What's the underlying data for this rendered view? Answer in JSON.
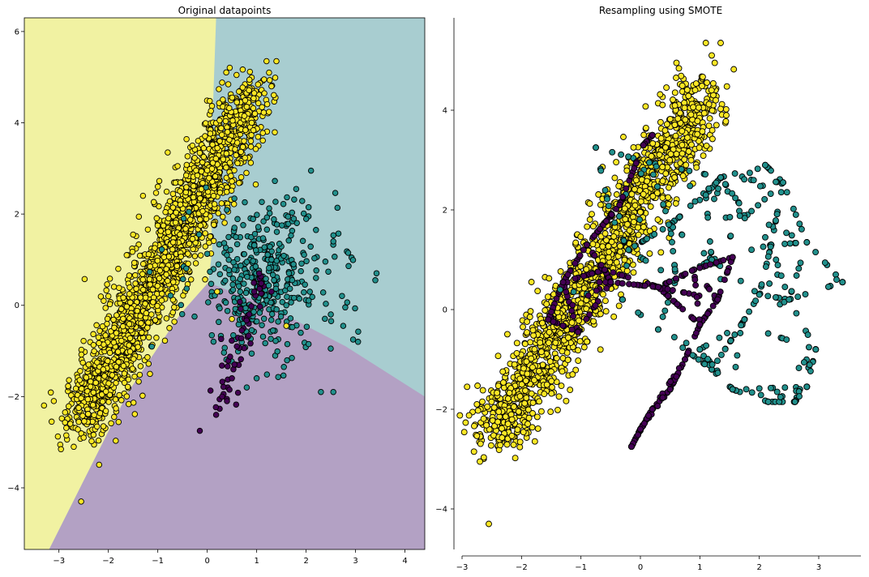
{
  "colors": {
    "class_0": "#440154",
    "class_1": "#21908c",
    "class_2": "#fde725",
    "region_0": "#b3a1c4",
    "region_1": "#a8cdd0",
    "region_2": "#f1f2a2",
    "marker_edge": "#000000"
  },
  "chart_data": [
    {
      "type": "scatter",
      "title": "Original datapoints",
      "xlabel": "",
      "ylabel": "",
      "xlim": [
        -3.7,
        4.4
      ],
      "ylim": [
        -5.35,
        6.3
      ],
      "xticks": [
        -3,
        -2,
        -1,
        0,
        1,
        2,
        3,
        4
      ],
      "yticks": [
        -4,
        -2,
        0,
        2,
        4,
        6
      ],
      "grid": false,
      "background": "decision regions",
      "decision_regions": {
        "class_2_boundary": [
          [
            0.18,
            6.3
          ],
          [
            0.12,
            4.5
          ],
          [
            0.05,
            3.2
          ],
          [
            0.1,
            1.2
          ],
          [
            0.02,
            0.5
          ],
          [
            -0.55,
            -0.2
          ],
          [
            -1.6,
            -1.9
          ],
          [
            -3.2,
            -5.35
          ]
        ],
        "class_0_1_boundary": [
          [
            0.02,
            0.5
          ],
          [
            1.2,
            0.0
          ],
          [
            2.8,
            -0.9
          ],
          [
            4.4,
            -2.0
          ]
        ]
      },
      "series": [
        {
          "class": "2",
          "count_estimate": 2000,
          "distribution": "dense elongated cloud from about (-2.9, -3.0) to (1.4, 5.3)",
          "points": [
            [
              1.4,
              5.35
            ],
            [
              1.2,
              5.35
            ],
            [
              1.25,
              5.1
            ],
            [
              1.15,
              4.95
            ],
            [
              1.3,
              4.8
            ],
            [
              0.95,
              4.65
            ],
            [
              0.8,
              4.35
            ],
            [
              0.6,
              4.45
            ],
            [
              0.75,
              4.15
            ],
            [
              0.9,
              4.0
            ],
            [
              -0.3,
              3.5
            ],
            [
              -0.8,
              3.35
            ],
            [
              -0.6,
              3.05
            ],
            [
              -1.0,
              2.6
            ],
            [
              -1.3,
              2.4
            ],
            [
              -1.5,
              1.55
            ],
            [
              -1.8,
              0.8
            ],
            [
              -2.0,
              0.2
            ],
            [
              -2.2,
              -0.7
            ],
            [
              -2.4,
              -1.3
            ],
            [
              -2.6,
              -2.25
            ],
            [
              -2.85,
              -2.85
            ],
            [
              -2.7,
              -3.1
            ],
            [
              -2.5,
              -2.9
            ],
            [
              -2.1,
              -2.65
            ],
            [
              -2.55,
              -4.3
            ],
            [
              0.2,
              0.3
            ],
            [
              0.5,
              -0.3
            ],
            [
              1.6,
              -0.45
            ]
          ]
        },
        {
          "class": "1",
          "count_estimate": 400,
          "distribution": "sparse cloud centered near (1.2, 0.6)",
          "points": [
            [
              2.1,
              2.95
            ],
            [
              1.8,
              2.55
            ],
            [
              2.05,
              2.15
            ],
            [
              1.75,
              1.9
            ],
            [
              2.2,
              1.65
            ],
            [
              2.55,
              1.4
            ],
            [
              2.85,
              1.15
            ],
            [
              3.4,
              0.55
            ],
            [
              2.2,
              0.6
            ],
            [
              2.5,
              -0.2
            ],
            [
              2.75,
              -0.45
            ],
            [
              2.95,
              -0.75
            ],
            [
              3.05,
              -0.8
            ],
            [
              2.05,
              -0.85
            ],
            [
              1.55,
              -1.35
            ],
            [
              1.0,
              -1.6
            ],
            [
              0.8,
              -1.8
            ],
            [
              2.3,
              -1.9
            ],
            [
              2.55,
              -1.9
            ],
            [
              0.55,
              1.7
            ],
            [
              0.4,
              1.1
            ],
            [
              1.3,
              1.0
            ],
            [
              0.9,
              0.3
            ],
            [
              1.6,
              0.0
            ]
          ]
        },
        {
          "class": "0",
          "count_estimate": 60,
          "distribution": "small cluster near (0.7, -1.2)",
          "points": [
            [
              1.05,
              0.7
            ],
            [
              0.95,
              0.3
            ],
            [
              0.85,
              -0.2
            ],
            [
              0.7,
              -0.55
            ],
            [
              0.6,
              -0.9
            ],
            [
              0.55,
              -1.3
            ],
            [
              0.5,
              -1.6
            ],
            [
              0.45,
              -1.85
            ],
            [
              0.3,
              -2.0
            ],
            [
              0.4,
              -2.1
            ],
            [
              0.18,
              -2.4
            ],
            [
              -0.15,
              -2.75
            ],
            [
              1.3,
              0.3
            ]
          ]
        }
      ]
    },
    {
      "type": "scatter",
      "title": "Resampling using SMOTE",
      "xlabel": "",
      "ylabel": "",
      "xlim": [
        -3.0,
        3.5
      ],
      "ylim": [
        -4.9,
        5.6
      ],
      "xticks": [
        -3,
        -2,
        -1,
        0,
        1,
        2,
        3
      ],
      "yticks": [
        -4,
        -2,
        0,
        2,
        4
      ],
      "grid": false,
      "background": "none",
      "series": [
        {
          "class": "2",
          "count_estimate": 2000,
          "distribution": "same yellow cloud as the original data",
          "points": [
            [
              1.1,
              5.35
            ],
            [
              1.35,
              5.35
            ],
            [
              1.2,
              5.1
            ],
            [
              1.25,
              4.95
            ],
            [
              0.6,
              4.65
            ],
            [
              -2.55,
              -4.3
            ],
            [
              -2.7,
              -3.05
            ],
            [
              -2.8,
              -2.85
            ]
          ]
        },
        {
          "class": "1",
          "count_estimate": 2000,
          "distribution": "synthetic points along segments between original minority samples, spanning x -1.4..3.4, y -2.0..3.0",
          "points": [
            [
              -0.75,
              3.25
            ],
            [
              0.15,
              2.95
            ],
            [
              1.35,
              2.65
            ],
            [
              2.1,
              2.9
            ],
            [
              2.4,
              2.55
            ],
            [
              3.4,
              0.55
            ],
            [
              3.3,
              0.6
            ],
            [
              2.95,
              -0.8
            ],
            [
              2.8,
              -1.55
            ],
            [
              2.15,
              -1.85
            ],
            [
              2.6,
              -1.85
            ],
            [
              1.55,
              -1.6
            ],
            [
              -1.35,
              0.4
            ]
          ]
        },
        {
          "class": "0",
          "count_estimate": 2000,
          "distribution": "synthetic points along segments between original minority samples, spanning x -1.6..1.6, y -2.75..3.5",
          "points": [
            [
              0.2,
              3.5
            ],
            [
              0.05,
              3.3
            ],
            [
              -0.35,
              2.1
            ],
            [
              -0.9,
              1.3
            ],
            [
              -1.3,
              0.55
            ],
            [
              -1.55,
              -0.2
            ],
            [
              -1.05,
              -0.45
            ],
            [
              -0.5,
              0.55
            ],
            [
              0.3,
              0.45
            ],
            [
              1.55,
              1.05
            ],
            [
              1.3,
              0.2
            ],
            [
              1.0,
              -0.3
            ],
            [
              0.75,
              -1.0
            ],
            [
              0.5,
              -1.6
            ],
            [
              0.2,
              -2.0
            ],
            [
              0.0,
              -2.4
            ],
            [
              -0.15,
              -2.75
            ]
          ]
        }
      ]
    }
  ]
}
